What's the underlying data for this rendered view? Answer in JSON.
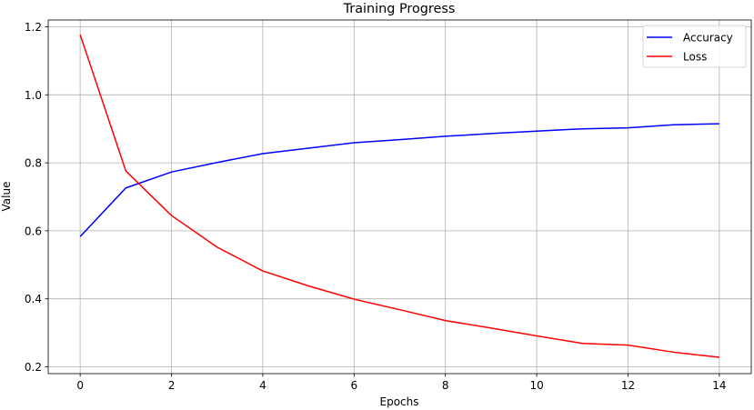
{
  "chart_data": {
    "type": "line",
    "title": "Training Progress",
    "xlabel": "Epochs",
    "ylabel": "Value",
    "x": [
      0,
      1,
      2,
      3,
      4,
      5,
      6,
      7,
      8,
      9,
      10,
      11,
      12,
      13,
      14
    ],
    "xlim": [
      -0.7,
      14.7
    ],
    "ylim": [
      0.18,
      1.22
    ],
    "xticks": [
      "0",
      "2",
      "4",
      "6",
      "8",
      "10",
      "12",
      "14"
    ],
    "yticks": [
      "0.2",
      "0.4",
      "0.6",
      "0.8",
      "1.0",
      "1.2"
    ],
    "grid": true,
    "legend_position": "top-right",
    "series": [
      {
        "name": "Accuracy",
        "color": "#0000ff",
        "values": [
          0.583,
          0.726,
          0.773,
          0.801,
          0.827,
          0.843,
          0.859,
          0.868,
          0.878,
          0.886,
          0.893,
          0.9,
          0.903,
          0.912,
          0.915
        ]
      },
      {
        "name": "Loss",
        "color": "#ff0000",
        "values": [
          1.177,
          0.776,
          0.645,
          0.552,
          0.482,
          0.438,
          0.399,
          0.368,
          0.336,
          0.314,
          0.291,
          0.269,
          0.264,
          0.243,
          0.228
        ]
      }
    ]
  }
}
